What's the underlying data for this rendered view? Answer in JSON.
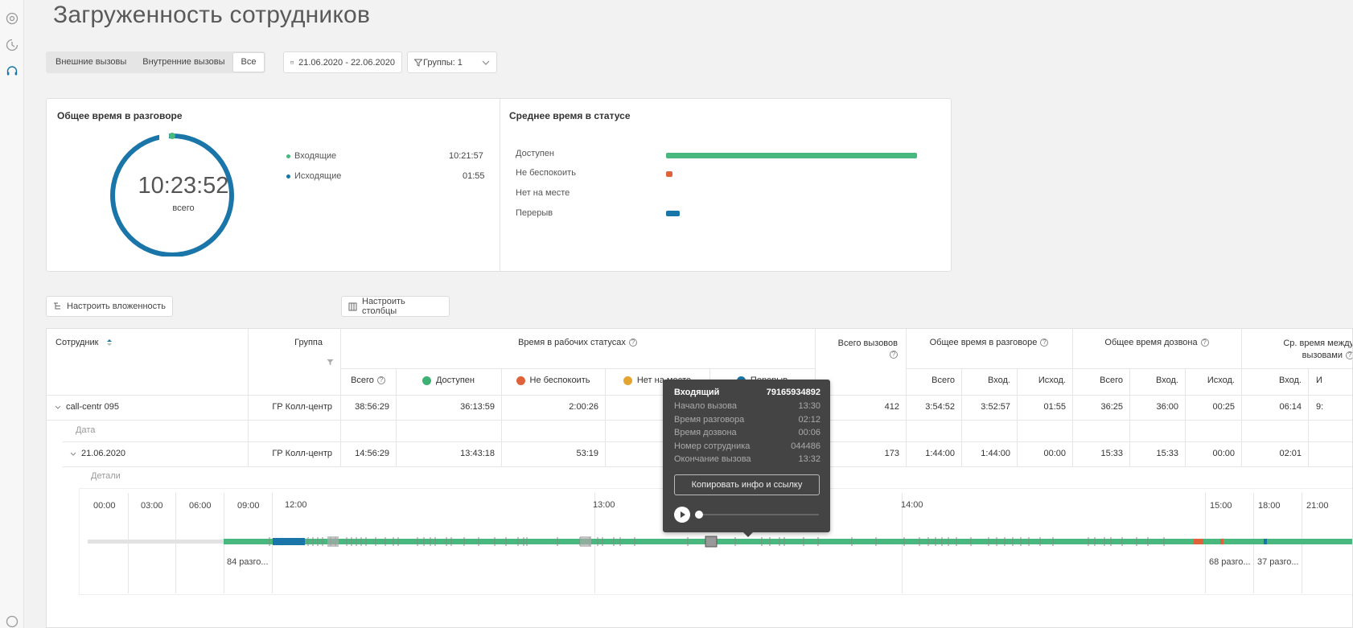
{
  "page_title": "Загруженность сотрудников",
  "filters": {
    "call_types": [
      "Внешние вызовы",
      "Внутренние вызовы",
      "Все"
    ],
    "active_call_type": "Все",
    "date_range": "21.06.2020 - 22.06.2020",
    "groups": "Группы: 1"
  },
  "talk_card": {
    "title": "Общее время в разговоре",
    "total": "10:23:52",
    "total_label": "всего",
    "legend": [
      {
        "label": "Входящие",
        "value": "10:21:57",
        "color": "#3bb273"
      },
      {
        "label": "Исходящие",
        "value": "01:55",
        "color": "#1a75a8"
      }
    ]
  },
  "status_card": {
    "title": "Среднее время в статусе",
    "items": [
      {
        "label": "Доступен",
        "share": 1.0,
        "color": "#49b87e"
      },
      {
        "label": "Не беспокоить",
        "share": 0.025,
        "color": "#e0623a"
      },
      {
        "label": "Нет на месте",
        "share": 0,
        "color": "#e5a430"
      },
      {
        "label": "Перерыв",
        "share": 0.055,
        "color": "#1a75a8"
      }
    ]
  },
  "buttons": {
    "nesting": "Настроить вложенность",
    "columns": "Настроить столбцы"
  },
  "table": {
    "headers": {
      "employee": "Сотрудник",
      "group": "Группа",
      "work_status": "Время в рабочих статусах",
      "total_calls": "Всего вызовов",
      "talk_time": "Общее время в разговоре",
      "ring_time": "Общее время дозвона",
      "avg_between": "Ср. время между вызовами"
    },
    "subheaders": {
      "total": "Всего",
      "available": "Доступен",
      "dnd": "Не беспокоить",
      "away": "Нет на месте",
      "break": "Перерыв",
      "talk_total": "Всего",
      "talk_in": "Вход.",
      "talk_out": "Исход.",
      "ring_total": "Всего",
      "ring_in": "Вход.",
      "ring_out": "Исход.",
      "avg_in": "Вход.",
      "avg_out": "И"
    },
    "rows": [
      {
        "name": "call-centr 095",
        "group": "ГР Колл-центр",
        "total": "38:56:29",
        "available": "36:13:59",
        "dnd": "2:00:26",
        "calls": "412",
        "talk_total": "3:54:52",
        "talk_in": "3:52:57",
        "talk_out": "01:55",
        "ring_total": "36:25",
        "ring_in": "36:00",
        "ring_out": "00:25",
        "avg_in": "06:14",
        "avg_out": "9:"
      },
      {
        "name": "21.06.2020",
        "group": "ГР Колл-центр",
        "total": "14:56:29",
        "available": "13:43:18",
        "dnd": "53:19",
        "calls": "173",
        "talk_total": "1:44:00",
        "talk_in": "1:44:00",
        "talk_out": "00:00",
        "ring_total": "15:33",
        "ring_in": "15:33",
        "ring_out": "00:00",
        "avg_in": "02:01",
        "avg_out": ""
      }
    ],
    "date_label": "Дата",
    "details_label": "Детали"
  },
  "timeline": {
    "ticks": [
      "00:00",
      "03:00",
      "06:00",
      "09:00",
      "12:00",
      "13:00",
      "14:00",
      "15:00",
      "18:00",
      "21:00"
    ],
    "segment_labels": [
      "84 разго...",
      "68 разго...",
      "37 разго..."
    ]
  },
  "tooltip": {
    "type": "Входящий",
    "number": "79165934892",
    "rows": [
      {
        "k": "Начало вызова",
        "v": "13:30"
      },
      {
        "k": "Время разговора",
        "v": "02:12"
      },
      {
        "k": "Время дозвона",
        "v": "00:06"
      },
      {
        "k": "Номер сотрудника",
        "v": "044486"
      },
      {
        "k": "Окончание вызова",
        "v": "13:32"
      }
    ],
    "copy_button": "Копировать инфо и ссылку"
  }
}
